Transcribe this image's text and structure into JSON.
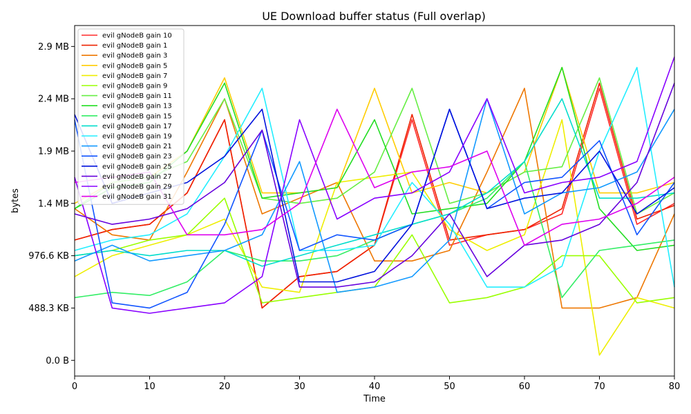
{
  "chart_data": {
    "type": "line",
    "title": "UE Download buffer status (Full overlap)",
    "xlabel": "Time",
    "ylabel": "bytes",
    "xlim": [
      0,
      80
    ],
    "ylim": [
      -150000,
      3200000
    ],
    "x_ticks": [
      0,
      10,
      20,
      30,
      40,
      50,
      60,
      70,
      80
    ],
    "y_ticks": [
      {
        "value": 0,
        "label": "0.0 B"
      },
      {
        "value": 500000,
        "label": "488.3 KB"
      },
      {
        "value": 1000000,
        "label": "976.6 KB"
      },
      {
        "value": 1500000,
        "label": "1.4 MB"
      },
      {
        "value": 2000000,
        "label": "1.9 MB"
      },
      {
        "value": 2500000,
        "label": "2.4 MB"
      },
      {
        "value": 3000000,
        "label": "2.9 MB"
      }
    ],
    "grid": false,
    "legend_position": "top-left",
    "x": [
      0,
      5,
      10,
      15,
      20,
      25,
      30,
      35,
      40,
      45,
      50,
      55,
      60,
      65,
      70,
      75,
      80
    ],
    "series": [
      {
        "name": "evil gNodeB gain 10",
        "color": "#ff2a2a",
        "values": [
          1150000,
          1250000,
          1300000,
          1600000,
          2300000,
          500000,
          800000,
          850000,
          1100000,
          2300000,
          1100000,
          1200000,
          1250000,
          1400000,
          2600000,
          1300000,
          1500000
        ]
      },
      {
        "name": "evil gNodeB gain 1",
        "color": "#ee2200",
        "values": [
          1150000,
          1250000,
          1300000,
          1600000,
          2300000,
          500000,
          800000,
          850000,
          1100000,
          2350000,
          1150000,
          1200000,
          1250000,
          1450000,
          2650000,
          1350000,
          1480000
        ]
      },
      {
        "name": "evil gNodeB gain 3",
        "color": "#ee7700",
        "values": [
          1450000,
          1200000,
          1150000,
          1800000,
          2500000,
          1400000,
          1550000,
          1700000,
          950000,
          950000,
          1050000,
          1800000,
          2600000,
          500000,
          500000,
          600000,
          1400000
        ]
      },
      {
        "name": "evil gNodeB gain 5",
        "color": "#ffcc00",
        "values": [
          1500000,
          1700000,
          1750000,
          2000000,
          2700000,
          1600000,
          1600000,
          1650000,
          2600000,
          1600000,
          1700000,
          1600000,
          1800000,
          2800000,
          1600000,
          1600000,
          1700000
        ]
      },
      {
        "name": "evil gNodeB gain 7",
        "color": "#eeee00",
        "values": [
          800000,
          1000000,
          1100000,
          1200000,
          1350000,
          700000,
          650000,
          1700000,
          1750000,
          1800000,
          1250000,
          1050000,
          1200000,
          2300000,
          50000,
          600000,
          500000
        ]
      },
      {
        "name": "evil gNodeB gain 9",
        "color": "#99ff00",
        "values": [
          1000000,
          1050000,
          1150000,
          1200000,
          1550000,
          550000,
          600000,
          650000,
          700000,
          1200000,
          550000,
          600000,
          700000,
          1000000,
          1000000,
          550000,
          600000
        ]
      },
      {
        "name": "evil gNodeB gain 11",
        "color": "#66ee44",
        "values": [
          1450000,
          1700000,
          1750000,
          1900000,
          2500000,
          1550000,
          1500000,
          1550000,
          1800000,
          2600000,
          1500000,
          1600000,
          1800000,
          1850000,
          2700000,
          1400000,
          1600000
        ]
      },
      {
        "name": "evil gNodeB gain 13",
        "color": "#22dd22",
        "values": [
          1450000,
          1650000,
          1700000,
          2000000,
          2650000,
          1550000,
          1600000,
          1650000,
          2300000,
          1400000,
          1450000,
          1500000,
          1900000,
          2800000,
          1450000,
          1050000,
          1100000
        ]
      },
      {
        "name": "evil gNodeB gain 15",
        "color": "#33ee66",
        "values": [
          600000,
          650000,
          620000,
          750000,
          1050000,
          950000,
          950000,
          1000000,
          1150000,
          1300000,
          1400000,
          1550000,
          1900000,
          600000,
          1050000,
          1100000,
          1150000
        ]
      },
      {
        "name": "evil gNodeB gain 17",
        "color": "#00ddcc",
        "values": [
          1000000,
          1050000,
          1000000,
          1050000,
          1050000,
          900000,
          1000000,
          1100000,
          1200000,
          1300000,
          1400000,
          1600000,
          1900000,
          2500000,
          1550000,
          1550000,
          1600000
        ]
      },
      {
        "name": "evil gNodeB gain 19",
        "color": "#22eeff",
        "values": [
          1050000,
          1150000,
          1200000,
          1400000,
          1950000,
          2600000,
          1050000,
          1050000,
          1100000,
          1700000,
          1300000,
          700000,
          700000,
          900000,
          2000000,
          2800000,
          700000
        ]
      },
      {
        "name": "evil gNodeB gain 21",
        "color": "#1199ff",
        "values": [
          950000,
          1100000,
          950000,
          1000000,
          1050000,
          1200000,
          1900000,
          650000,
          700000,
          800000,
          1150000,
          2500000,
          1400000,
          1600000,
          1650000,
          1800000,
          2400000
        ]
      },
      {
        "name": "evil gNodeB gain 23",
        "color": "#1155ff",
        "values": [
          2300000,
          550000,
          500000,
          650000,
          1300000,
          2200000,
          1050000,
          1200000,
          1150000,
          1300000,
          2400000,
          1450000,
          1700000,
          1750000,
          2100000,
          1200000,
          1700000
        ]
      },
      {
        "name": "evil gNodeB gain 25",
        "color": "#0011dd",
        "values": [
          2350000,
          1500000,
          1600000,
          1700000,
          1950000,
          2400000,
          750000,
          750000,
          850000,
          1300000,
          2400000,
          1450000,
          1550000,
          1600000,
          2000000,
          1400000,
          1650000
        ]
      },
      {
        "name": "evil gNodeB gain 27",
        "color": "#6600dd",
        "values": [
          1400000,
          1300000,
          1350000,
          1450000,
          1700000,
          2200000,
          700000,
          700000,
          750000,
          1000000,
          1400000,
          800000,
          1100000,
          1150000,
          1300000,
          1700000,
          2650000
        ]
      },
      {
        "name": "evil gNodeB gain 29",
        "color": "#8800ff",
        "values": [
          1750000,
          500000,
          450000,
          500000,
          550000,
          800000,
          2300000,
          1350000,
          1550000,
          1600000,
          1800000,
          2500000,
          1600000,
          1700000,
          1750000,
          1900000,
          2900000
        ]
      },
      {
        "name": "evil gNodeB gain 31",
        "color": "#dd00ee",
        "values": [
          1700000,
          1750000,
          1800000,
          1200000,
          1200000,
          1250000,
          1500000,
          2400000,
          1650000,
          1800000,
          1850000,
          2000000,
          1100000,
          1300000,
          1350000,
          1500000,
          1750000
        ]
      }
    ]
  }
}
